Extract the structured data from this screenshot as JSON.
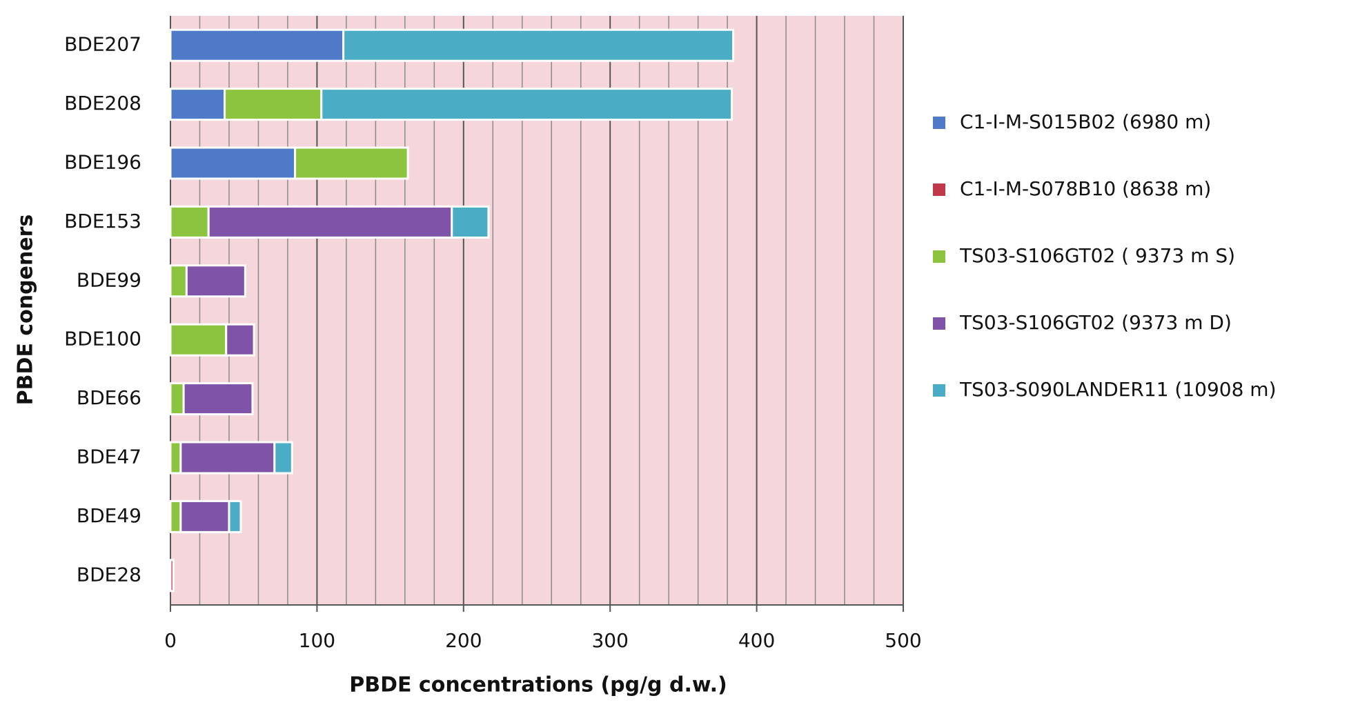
{
  "chart_data": {
    "type": "stacked-barh",
    "x_label": "PBDE concentrations (pg/g d.w.)",
    "y_label": "PBDE congeners",
    "categories": [
      "BDE207",
      "BDE208",
      "BDE196",
      "BDE153",
      "BDE99",
      "BDE100",
      "BDE66",
      "BDE47",
      "BDE49",
      "BDE28"
    ],
    "series": [
      {
        "name": "C1-I-M-S015B02 (6980 m)",
        "color": "#4f7ac7",
        "values": [
          118,
          37,
          85,
          null,
          null,
          null,
          null,
          null,
          null,
          null
        ]
      },
      {
        "name": "C1-I-M-S078B10 (8638 m)",
        "color": "#c0394b",
        "values": [
          null,
          null,
          null,
          null,
          null,
          null,
          null,
          null,
          null,
          2
        ]
      },
      {
        "name": "TS03-S106GT02 ( 9373 m S)",
        "color": "#8dc43f",
        "values": [
          null,
          66,
          77,
          26,
          11,
          38,
          9,
          7,
          7,
          null
        ]
      },
      {
        "name": "TS03-S106GT02 (9373 m D)",
        "color": "#7e53a8",
        "values": [
          null,
          null,
          null,
          166,
          40,
          19,
          47,
          64,
          33,
          null
        ]
      },
      {
        "name": "TS03-S090LANDER11 (10908 m)",
        "color": "#4bacc6",
        "values": [
          266,
          280,
          null,
          25,
          null,
          null,
          null,
          12,
          8,
          null
        ]
      }
    ],
    "xlim": [
      0,
      500
    ],
    "xticks": [
      0,
      100,
      200,
      300,
      400,
      500
    ],
    "grid": true,
    "legend": "right"
  }
}
